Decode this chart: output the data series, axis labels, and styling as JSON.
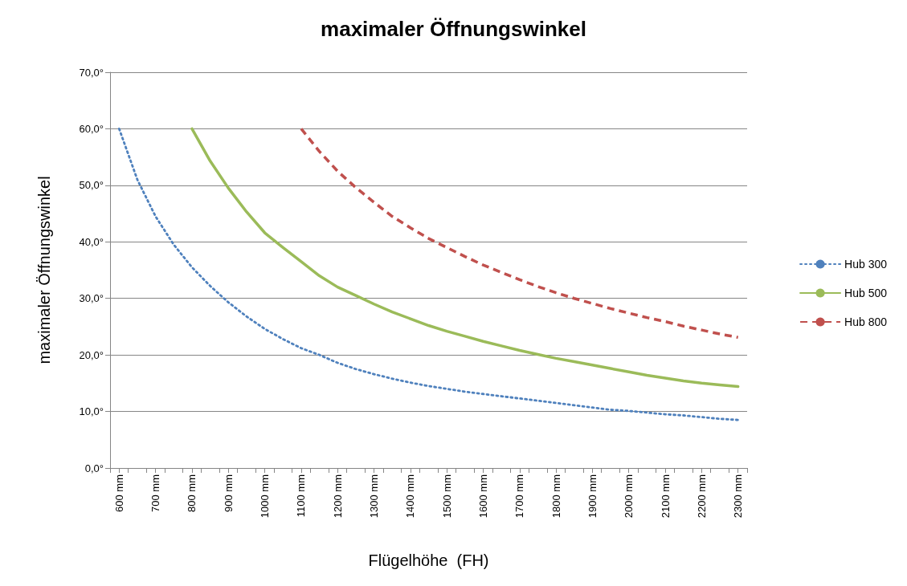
{
  "chart_data": {
    "type": "line",
    "title": "maximaler Öffnungswinkel",
    "xlabel": "Flügelhöhe  (FH)",
    "ylabel": "maximaler Öffnungswinkel",
    "series": [
      {
        "name": "Hub 300",
        "color": "#4f81bd",
        "line_style": "dotted",
        "x": [
          600,
          650,
          700,
          750,
          800,
          850,
          900,
          950,
          1000,
          1050,
          1100,
          1150,
          1200,
          1250,
          1300,
          1350,
          1400,
          1450,
          1500,
          1550,
          1600,
          1650,
          1700,
          1750,
          1800,
          1850,
          1900,
          1950,
          2000,
          2050,
          2100,
          2150,
          2200,
          2250,
          2300
        ],
        "values": [
          60,
          51,
          44.5,
          39.5,
          35.5,
          32.2,
          29.3,
          26.8,
          24.6,
          22.8,
          21.2,
          20,
          18.6,
          17.5,
          16.6,
          15.8,
          15.1,
          14.5,
          14,
          13.5,
          13.1,
          12.7,
          12.3,
          11.9,
          11.5,
          11.1,
          10.7,
          10.3,
          10.1,
          9.8,
          9.5,
          9.3,
          9,
          8.7,
          8.5
        ]
      },
      {
        "name": "Hub 500",
        "color": "#9bbb59",
        "line_style": "solid",
        "x": [
          800,
          850,
          900,
          950,
          1000,
          1050,
          1100,
          1150,
          1200,
          1250,
          1300,
          1350,
          1400,
          1450,
          1500,
          1550,
          1600,
          1650,
          1700,
          1750,
          1800,
          1850,
          1900,
          1950,
          2000,
          2050,
          2100,
          2150,
          2200,
          2250,
          2300
        ],
        "values": [
          60,
          54.3,
          49.5,
          45.3,
          41.6,
          39,
          36.5,
          34,
          32,
          30.5,
          29,
          27.6,
          26.4,
          25.2,
          24.2,
          23.3,
          22.4,
          21.6,
          20.8,
          20.1,
          19.4,
          18.8,
          18.2,
          17.6,
          17,
          16.4,
          15.9,
          15.4,
          15,
          14.7,
          14.4
        ]
      },
      {
        "name": "Hub 800",
        "color": "#c0504d",
        "line_style": "dashed",
        "x": [
          1100,
          1150,
          1200,
          1250,
          1300,
          1350,
          1400,
          1450,
          1500,
          1550,
          1600,
          1650,
          1700,
          1750,
          1800,
          1850,
          1900,
          1950,
          2000,
          2050,
          2100,
          2150,
          2200,
          2250,
          2300
        ],
        "values": [
          60,
          56,
          52.5,
          49.6,
          47,
          44.5,
          42.5,
          40.6,
          39,
          37.4,
          35.9,
          34.6,
          33.3,
          32.1,
          31,
          30,
          29.1,
          28.2,
          27.4,
          26.6,
          25.9,
          25.1,
          24.4,
          23.7,
          23.1
        ]
      }
    ],
    "xlim": [
      575,
      2325
    ],
    "xticks": [
      {
        "value": 575,
        "label": null
      },
      {
        "value": 600,
        "label": "600 mm"
      },
      {
        "value": 625,
        "label": null
      },
      {
        "value": 675,
        "label": null
      },
      {
        "value": 700,
        "label": "700 mm"
      },
      {
        "value": 725,
        "label": null
      },
      {
        "value": 775,
        "label": null
      },
      {
        "value": 800,
        "label": "800 mm"
      },
      {
        "value": 825,
        "label": null
      },
      {
        "value": 875,
        "label": null
      },
      {
        "value": 900,
        "label": "900 mm"
      },
      {
        "value": 925,
        "label": null
      },
      {
        "value": 975,
        "label": null
      },
      {
        "value": 1000,
        "label": "1000 mm"
      },
      {
        "value": 1025,
        "label": null
      },
      {
        "value": 1075,
        "label": null
      },
      {
        "value": 1100,
        "label": "1100 mm"
      },
      {
        "value": 1125,
        "label": null
      },
      {
        "value": 1175,
        "label": null
      },
      {
        "value": 1200,
        "label": "1200 mm"
      },
      {
        "value": 1225,
        "label": null
      },
      {
        "value": 1275,
        "label": null
      },
      {
        "value": 1300,
        "label": "1300 mm"
      },
      {
        "value": 1325,
        "label": null
      },
      {
        "value": 1375,
        "label": null
      },
      {
        "value": 1400,
        "label": "1400 mm"
      },
      {
        "value": 1425,
        "label": null
      },
      {
        "value": 1475,
        "label": null
      },
      {
        "value": 1500,
        "label": "1500 mm"
      },
      {
        "value": 1525,
        "label": null
      },
      {
        "value": 1575,
        "label": null
      },
      {
        "value": 1600,
        "label": "1600 mm"
      },
      {
        "value": 1625,
        "label": null
      },
      {
        "value": 1675,
        "label": null
      },
      {
        "value": 1700,
        "label": "1700 mm"
      },
      {
        "value": 1725,
        "label": null
      },
      {
        "value": 1775,
        "label": null
      },
      {
        "value": 1800,
        "label": "1800 mm"
      },
      {
        "value": 1825,
        "label": null
      },
      {
        "value": 1875,
        "label": null
      },
      {
        "value": 1900,
        "label": "1900 mm"
      },
      {
        "value": 1925,
        "label": null
      },
      {
        "value": 1975,
        "label": null
      },
      {
        "value": 2000,
        "label": "2000 mm"
      },
      {
        "value": 2025,
        "label": null
      },
      {
        "value": 2075,
        "label": null
      },
      {
        "value": 2100,
        "label": "2100 mm"
      },
      {
        "value": 2125,
        "label": null
      },
      {
        "value": 2175,
        "label": null
      },
      {
        "value": 2200,
        "label": "2200 mm"
      },
      {
        "value": 2225,
        "label": null
      },
      {
        "value": 2275,
        "label": null
      },
      {
        "value": 2300,
        "label": "2300 mm"
      },
      {
        "value": 2325,
        "label": null
      }
    ],
    "ylim": [
      0,
      70
    ],
    "yticks": [
      {
        "value": 0,
        "label": "0,0°"
      },
      {
        "value": 10,
        "label": "10,0°"
      },
      {
        "value": 20,
        "label": "20,0°"
      },
      {
        "value": 30,
        "label": "30,0°"
      },
      {
        "value": 40,
        "label": "40,0°"
      },
      {
        "value": 50,
        "label": "50,0°"
      },
      {
        "value": 60,
        "label": "60,0°"
      },
      {
        "value": 70,
        "label": "70,0°"
      }
    ],
    "grid": "y",
    "legend": "right",
    "marker": "none"
  }
}
